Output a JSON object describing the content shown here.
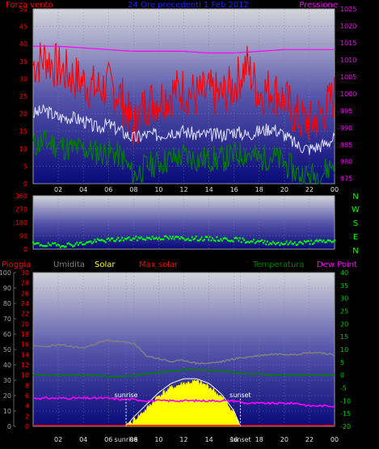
{
  "colors": {
    "wind_avg": "#008000",
    "wind_gust": "#ff0000",
    "pressure": "#ff00ff",
    "wind_dir": "#00ff00",
    "rain": "#ff0000",
    "humidity": "#808080",
    "solar": "#ffff00",
    "max_solar": "#ffffff",
    "temperature": "#008000",
    "dew_point": "#ff00ff",
    "sunrise_sunset": "#ffffff"
  },
  "panel1": {
    "label_left": "Forza vento",
    "label_center": "24 Ore precedenti 1 Feb 2012",
    "label_right": "Pressione"
  },
  "panel2": {
    "compass_labels": [
      "N",
      "W",
      "S",
      "E",
      "N"
    ]
  },
  "panel3": {
    "label_rain": "Pioggia",
    "label_humidity": "Umidita",
    "label_solar": "Solar",
    "label_max_solar": "Max solar",
    "label_temperature": "Temperatura",
    "label_dew_point": "Dew Point",
    "sunrise_label": "sunrise",
    "sunset_label": "sunset",
    "sunrise_tick": "sunrise",
    "sunset_tick": "sunset"
  },
  "chart_data": [
    {
      "type": "line",
      "x_ticks": [
        "02",
        "04",
        "06",
        "08",
        "10",
        "12",
        "14",
        "16",
        "18",
        "20",
        "22",
        "00"
      ],
      "ylim": [
        0,
        50
      ],
      "yticks_left": [
        "0",
        "5",
        "10",
        "15",
        "20",
        "25",
        "30",
        "35",
        "40",
        "45",
        "50"
      ],
      "ylim_right": [
        973.5,
        1025
      ],
      "yticks_right": [
        "975",
        "980",
        "985",
        "990",
        "995",
        "1000",
        "1005",
        "1010",
        "1015",
        "1020",
        "1025"
      ],
      "series": [
        {
          "name": "Forza vento",
          "x": [
            0,
            1,
            2,
            3,
            4,
            5,
            6,
            7,
            8,
            9,
            10,
            11,
            12,
            13,
            14,
            15,
            16,
            17,
            18,
            19,
            20,
            21,
            22,
            23,
            24
          ],
          "values": [
            20,
            21,
            19,
            19,
            18,
            16,
            17,
            15,
            13,
            14,
            14,
            15,
            15,
            14,
            14,
            14,
            15,
            14,
            15,
            16,
            14,
            11,
            10,
            11,
            13
          ]
        },
        {
          "name": "Forza vento",
          "x": [
            0,
            1,
            2,
            3,
            4,
            5,
            6,
            7,
            8,
            9,
            10,
            11,
            12,
            13,
            14,
            15,
            16,
            17,
            18,
            19,
            20,
            21,
            22,
            23,
            24
          ],
          "values": [
            34,
            36,
            33,
            31,
            29,
            27,
            28,
            25,
            16,
            23,
            24,
            26,
            27,
            25,
            26,
            25,
            28,
            34,
            26,
            27,
            24,
            19,
            17,
            20,
            25
          ]
        },
        {
          "name": "Forza vento",
          "x": [
            0,
            1,
            2,
            3,
            4,
            5,
            6,
            7,
            8,
            9,
            10,
            11,
            12,
            13,
            14,
            15,
            16,
            17,
            18,
            19,
            20,
            21,
            22,
            23,
            24
          ],
          "values": [
            11,
            12,
            11,
            10,
            10,
            9,
            9,
            8,
            2,
            5,
            6,
            7,
            8,
            7,
            7,
            7,
            8,
            9,
            7,
            8,
            6,
            3,
            2,
            3,
            6
          ]
        },
        {
          "name": "Pressione",
          "x": [
            0,
            2,
            4,
            6,
            8,
            10,
            12,
            14,
            16,
            18,
            20,
            22,
            24
          ],
          "values": [
            1014,
            1014,
            1013.5,
            1013,
            1012.5,
            1012.5,
            1012.5,
            1012,
            1012,
            1012.5,
            1013,
            1013,
            1013
          ]
        }
      ]
    },
    {
      "type": "scatter",
      "x_ticks": [
        "02",
        "04",
        "06",
        "08",
        "10",
        "12",
        "14",
        "16",
        "18",
        "20",
        "22",
        "00"
      ],
      "ylim": [
        0,
        360
      ],
      "yticks_left": [
        "0",
        "90",
        "180",
        "270",
        "360"
      ],
      "series": [
        {
          "x": [
            0,
            1,
            2,
            3,
            4,
            5,
            6,
            7,
            8,
            9,
            10,
            11,
            12,
            13,
            14,
            15,
            16,
            17,
            18,
            19,
            20,
            21,
            22,
            23,
            24
          ],
          "values": [
            35,
            30,
            28,
            32,
            40,
            55,
            62,
            68,
            72,
            75,
            78,
            76,
            74,
            72,
            70,
            68,
            66,
            58,
            50,
            45,
            40,
            42,
            48,
            52,
            58
          ]
        }
      ]
    },
    {
      "type": "area",
      "x_ticks": [
        "02",
        "04",
        "06",
        "sunrise",
        "08",
        "10",
        "12",
        "14",
        "16",
        "sunset",
        "18",
        "20",
        "22",
        "00"
      ],
      "ylim": [
        0,
        100
      ],
      "yticks_humidity": [
        "0",
        "10",
        "20",
        "30",
        "40",
        "50",
        "60",
        "70",
        "80",
        "90",
        "100"
      ],
      "yticks_rain": [
        "0",
        "2",
        "4",
        "6",
        "8",
        "10",
        "12",
        "14",
        "16",
        "18",
        "20",
        "22",
        "24",
        "26",
        "28",
        "30"
      ],
      "yticks_solar": [
        "0",
        "10",
        "20",
        "30",
        "40",
        "50",
        "60",
        "70",
        "80",
        "90",
        "100"
      ],
      "ylim_temp": [
        -20,
        40
      ],
      "yticks_temp": [
        "-20",
        "-15",
        "-10",
        "-5",
        "0",
        "5",
        "10",
        "15",
        "20",
        "25",
        "30",
        "35",
        "40"
      ],
      "sunrise_x": 7.4,
      "sunset_x": 16.5,
      "series": [
        {
          "name": "Umidita",
          "x": [
            0,
            1,
            2,
            3,
            4,
            5,
            6,
            7,
            8,
            9,
            10,
            11,
            12,
            13,
            14,
            15,
            16,
            17,
            18,
            19,
            20,
            21,
            22,
            23,
            24
          ],
          "values": [
            52,
            52,
            53,
            52,
            51,
            54,
            56,
            55,
            54,
            46,
            44,
            42,
            43,
            41,
            41,
            42,
            44,
            45,
            46,
            47,
            47,
            47,
            48,
            48,
            46
          ]
        },
        {
          "name": "Temperatura",
          "x": [
            0,
            1,
            2,
            3,
            4,
            5,
            6,
            7,
            8,
            9,
            10,
            11,
            12,
            13,
            14,
            15,
            16,
            17,
            18,
            19,
            20,
            21,
            22,
            23,
            24
          ],
          "values": [
            0,
            0,
            0,
            0,
            0,
            0,
            -0.5,
            -0.5,
            -0.3,
            0.5,
            1,
            1.5,
            2,
            2,
            2,
            1.5,
            1,
            0.5,
            0.5,
            0,
            0,
            0,
            0,
            0,
            0
          ]
        },
        {
          "name": "Dew Point",
          "x": [
            0,
            1,
            2,
            3,
            4,
            5,
            6,
            7,
            8,
            9,
            10,
            11,
            12,
            13,
            14,
            15,
            16,
            17,
            18,
            19,
            20,
            21,
            22,
            23,
            24
          ],
          "values": [
            -9,
            -9,
            -9,
            -9,
            -9,
            -9,
            -9,
            -9.5,
            -9.5,
            -10,
            -10,
            -10,
            -10,
            -10,
            -10,
            -10,
            -10,
            -11,
            -11,
            -11,
            -11,
            -11,
            -12,
            -12,
            -12
          ]
        },
        {
          "name": "Solar",
          "x": [
            7.4,
            8,
            9,
            10,
            11,
            12,
            13,
            14,
            15,
            16,
            16.5
          ],
          "values": [
            0,
            4,
            11,
            20,
            25,
            28,
            29,
            26,
            19,
            9,
            0
          ]
        },
        {
          "name": "Max solar",
          "x": [
            7.4,
            8,
            9,
            10,
            11,
            12,
            13,
            14,
            15,
            16,
            16.5
          ],
          "values": [
            0,
            6,
            14,
            22,
            28,
            31,
            31,
            28,
            21,
            10,
            0
          ]
        },
        {
          "name": "Pioggia",
          "x": [
            0,
            24
          ],
          "values": [
            0,
            0
          ]
        }
      ]
    }
  ]
}
